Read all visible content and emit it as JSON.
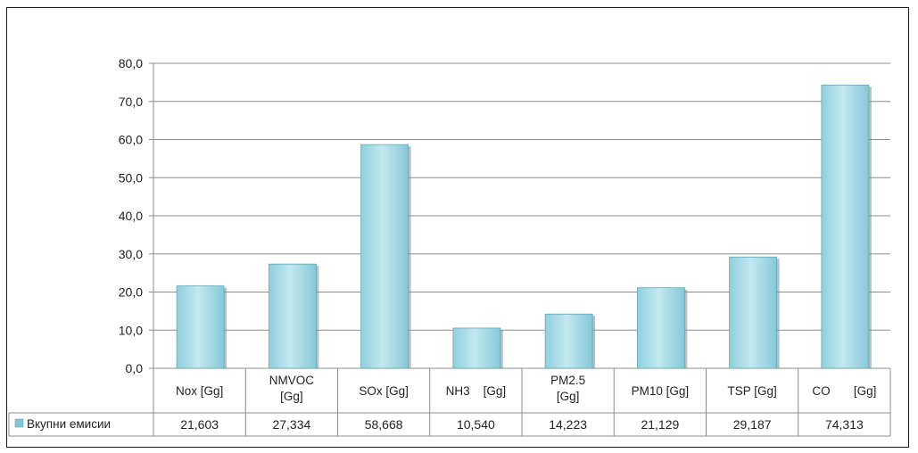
{
  "chart_data": {
    "type": "bar",
    "categories": [
      [
        "Nox [Gg]"
      ],
      [
        "NMVOC",
        "[Gg]"
      ],
      [
        "SOx [Gg]"
      ],
      [
        "NH3    [Gg]"
      ],
      [
        "PM2.5",
        "[Gg]"
      ],
      [
        "PM10 [Gg]"
      ],
      [
        "TSP [Gg]"
      ],
      [
        "CO       [Gg]"
      ]
    ],
    "series": [
      {
        "name": "Вкупни емисии",
        "values": [
          21.603,
          27.334,
          58.668,
          10.54,
          14.223,
          21.129,
          29.187,
          74.313
        ],
        "value_labels": [
          "21,603",
          "27,334",
          "58,668",
          "10,540",
          "14,223",
          "21,129",
          "29,187",
          "74,313"
        ]
      }
    ],
    "ylim": [
      0,
      80
    ],
    "y_ticks": [
      0,
      10,
      20,
      30,
      40,
      50,
      60,
      70,
      80
    ],
    "y_tick_labels": [
      "0,0",
      "10,0",
      "20,0",
      "30,0",
      "40,0",
      "50,0",
      "60,0",
      "70,0",
      "80,0"
    ],
    "grid": true,
    "data_table": true,
    "colors": {
      "bar_fill": "#a9dbe6",
      "bar_stroke": "#5fa8ba",
      "bar_shadow": "#8a8a8a",
      "grid": "#8c8c8c",
      "legend_swatch": "#7fc6d8"
    }
  }
}
